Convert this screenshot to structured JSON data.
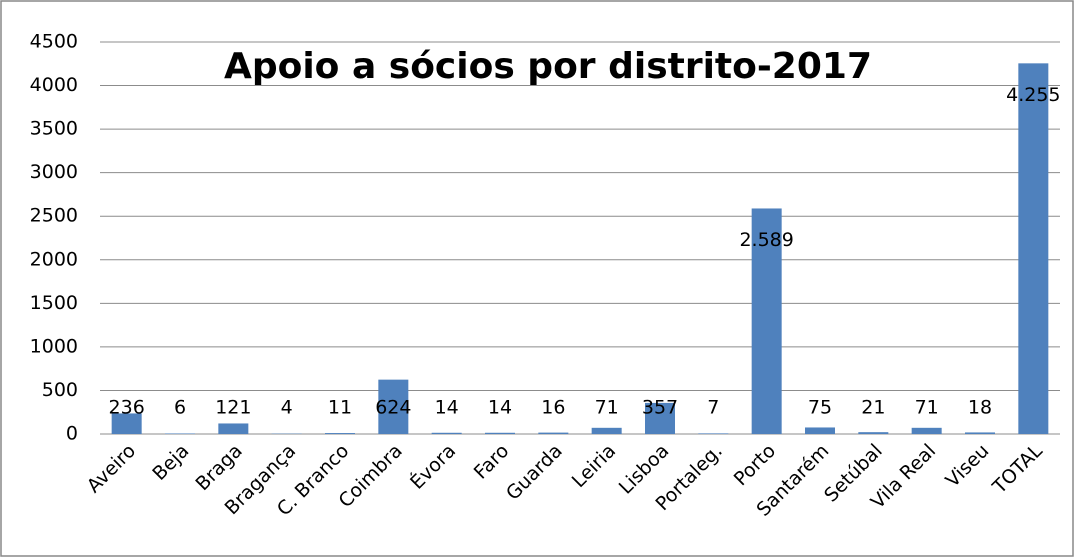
{
  "chart_data": {
    "type": "bar",
    "title": "Apoio a sócios por distrito-2017",
    "categories": [
      "Aveiro",
      "Beja",
      "Braga",
      "Bragança",
      "C. Branco",
      "Coimbra",
      "Évora",
      "Faro",
      "Guarda",
      "Leiria",
      "Lisboa",
      "Portaleg.",
      "Porto",
      "Santarém",
      "Setúbal",
      "Vila Real",
      "Viseu",
      "TOTAL"
    ],
    "values": [
      236,
      6,
      121,
      4,
      11,
      624,
      14,
      14,
      16,
      71,
      357,
      7,
      2589,
      75,
      21,
      71,
      18,
      4255
    ],
    "value_labels": [
      "236",
      "6",
      "121",
      "4",
      "11",
      "624",
      "14",
      "14",
      "16",
      "71",
      "357",
      "7",
      "2.589",
      "75",
      "21",
      "71",
      "18",
      "4.255"
    ],
    "color": "#4f81bd",
    "ylim": [
      0,
      4500
    ],
    "yticks": [
      0,
      500,
      1000,
      1500,
      2000,
      2500,
      3000,
      3500,
      4000,
      4500
    ],
    "grid": true
  }
}
